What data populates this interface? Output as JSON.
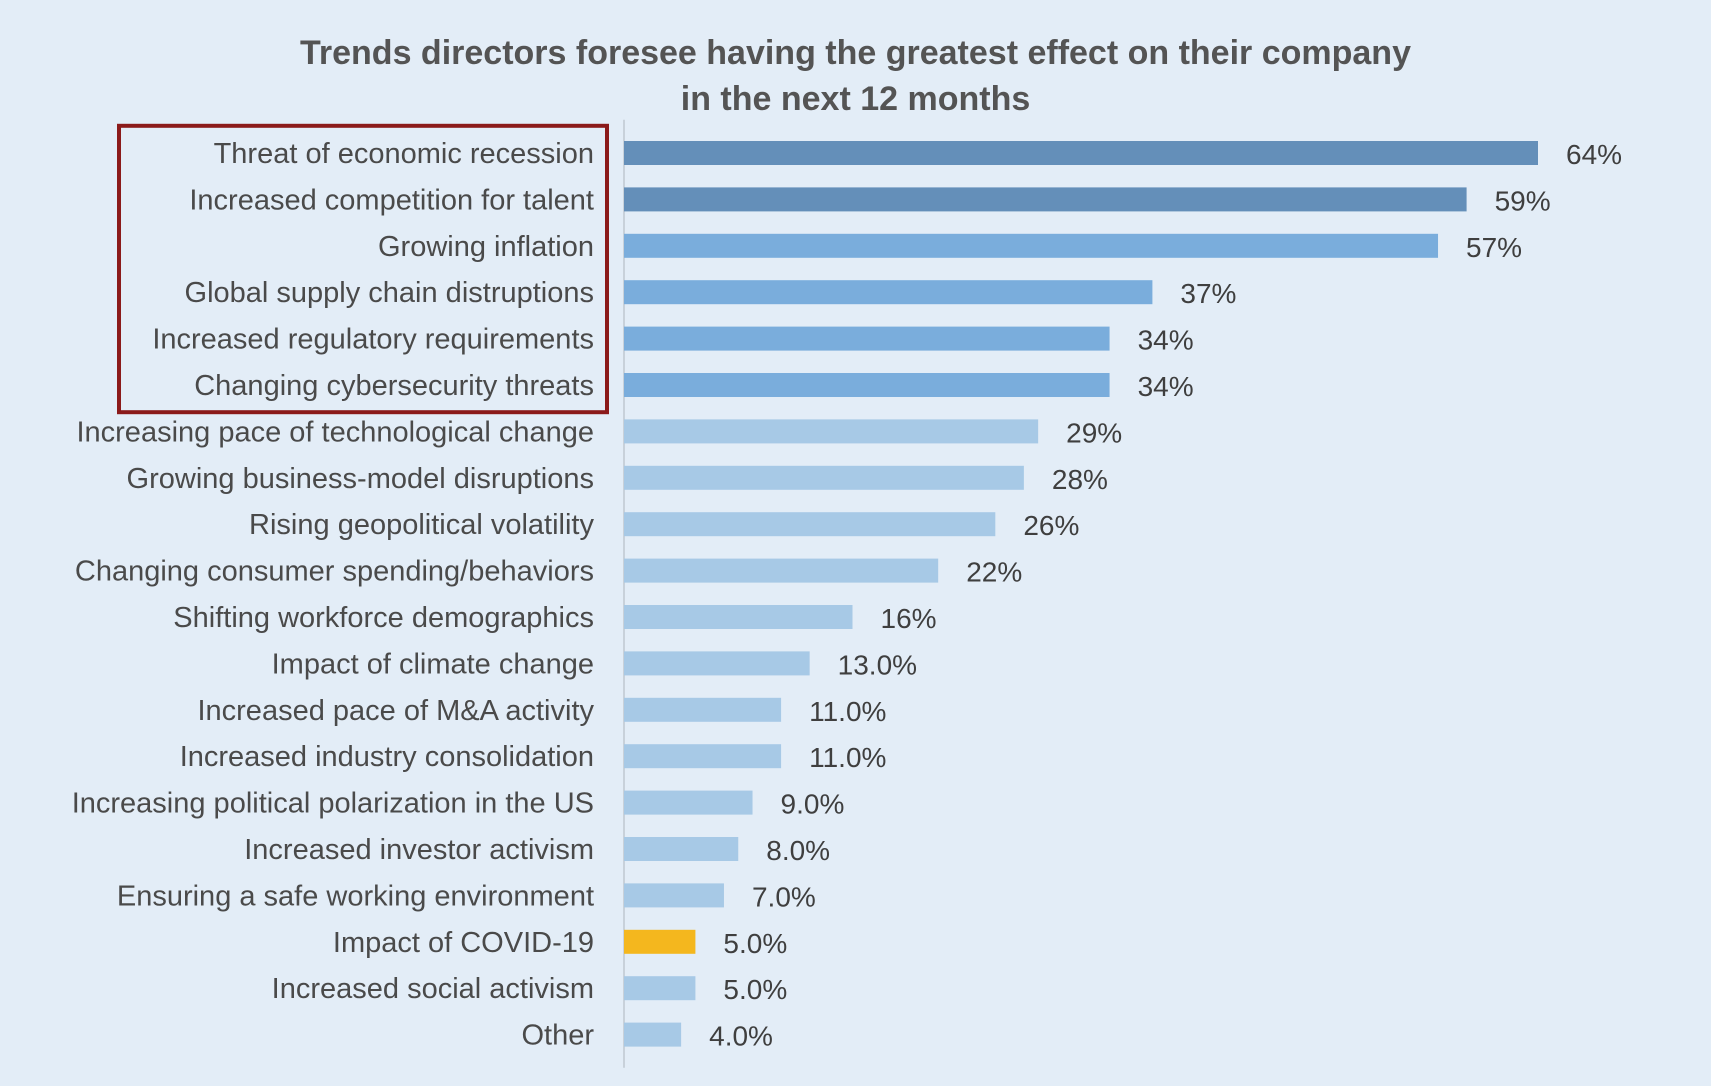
{
  "chart_data": {
    "type": "bar",
    "orientation": "horizontal",
    "title_lines": [
      "Trends directors foresee having the greatest effect on their company",
      "in the next 12 months"
    ],
    "categories": [
      "Threat of economic recession",
      "Increased competition for talent",
      "Growing inflation",
      "Global supply chain distruptions",
      "Increased regulatory requirements",
      "Changing cybersecurity threats",
      "Increasing pace of technological change",
      "Growing business-model disruptions",
      "Rising geopolitical volatility",
      "Changing consumer spending/behaviors",
      "Shifting workforce demographics",
      "Impact of climate change",
      "Increased pace of M&A activity",
      "Increased industry consolidation",
      "Increasing political polarization in the US",
      "Increased investor activism",
      "Ensuring a safe working environment",
      "Impact of COVID-19",
      "Increased social activism",
      "Other"
    ],
    "values": [
      64,
      59,
      57,
      37,
      34,
      34,
      29,
      28,
      26,
      22,
      16,
      13,
      11,
      11,
      9,
      8,
      7,
      5,
      5,
      4
    ],
    "value_labels": [
      "64%",
      "59%",
      "57%",
      "37%",
      "34%",
      "34%",
      "29%",
      "28%",
      "26%",
      "22%",
      "16%",
      "13.0%",
      "11.0%",
      "11.0%",
      "9.0%",
      "8.0%",
      "7.0%",
      "5.0%",
      "5.0%",
      "4.0%"
    ],
    "bar_colors": [
      "#648fb9",
      "#648fb9",
      "#7aaddc",
      "#7aaddc",
      "#7aaddc",
      "#7aaddc",
      "#a7c9e6",
      "#a7c9e6",
      "#a7c9e6",
      "#a7c9e6",
      "#a7c9e6",
      "#a7c9e6",
      "#a7c9e6",
      "#a7c9e6",
      "#a7c9e6",
      "#a7c9e6",
      "#a7c9e6",
      "#f4b71e",
      "#a7c9e6",
      "#a7c9e6"
    ],
    "xlim": [
      0,
      64
    ],
    "highlight_box": {
      "first_category_index": 0,
      "last_category_index": 5,
      "color": "#8b1a1a"
    },
    "axis_color": "#c8d1da",
    "background": "#e3edf7"
  }
}
